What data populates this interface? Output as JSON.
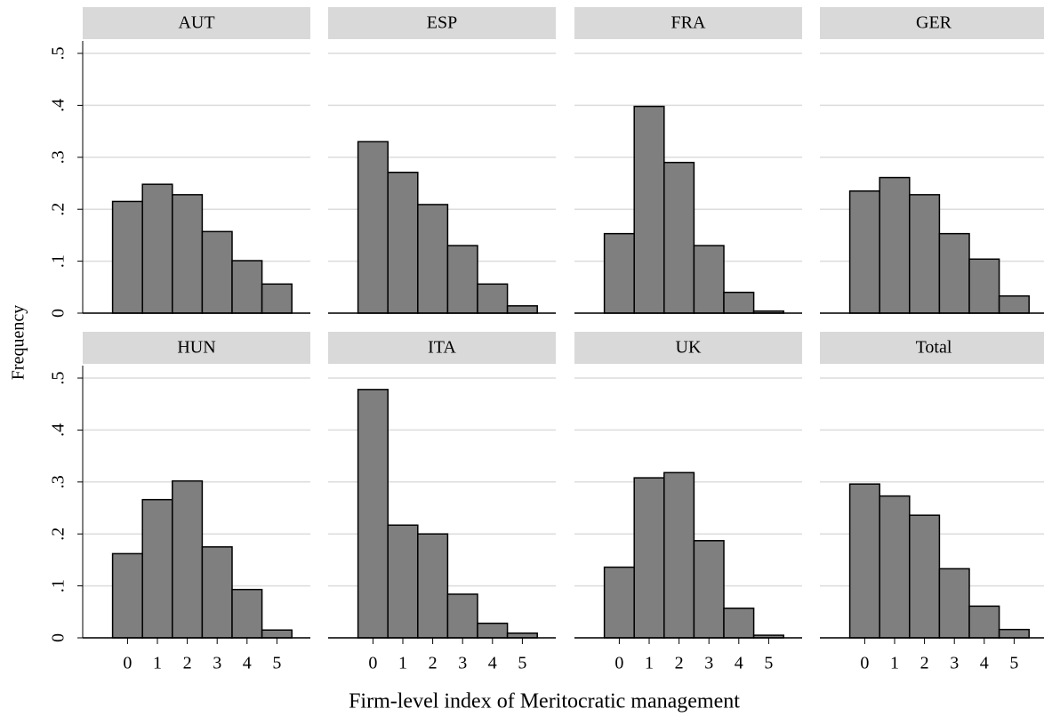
{
  "axis_labels": {
    "y": "Frequency",
    "x": "Firm-level index of Meritocratic management"
  },
  "chart_data": [
    {
      "type": "histogram",
      "title": "AUT",
      "bins": [
        -0.5,
        0.5,
        1.5,
        2.5,
        3.5,
        4.5,
        5.5
      ],
      "values": [
        0.215,
        0.248,
        0.228,
        0.157,
        0.101,
        0.056
      ],
      "color": "#7f7f7f",
      "xlim": [
        -1.5,
        6
      ],
      "ylim": [
        0,
        0.524
      ],
      "yticks": [
        0,
        {
          "value": 0.1,
          "label": ".1"
        },
        {
          "value": 0.2,
          "label": ".2"
        },
        {
          "value": 0.3,
          "label": ".3"
        },
        {
          "value": 0.4,
          "label": ".4"
        },
        {
          "value": 0.5,
          "label": ".5"
        }
      ],
      "grid": true
    },
    {
      "type": "histogram",
      "title": "ESP",
      "bins": [
        -0.5,
        0.5,
        1.5,
        2.5,
        3.5,
        4.5,
        5.5
      ],
      "values": [
        0.33,
        0.271,
        0.209,
        0.13,
        0.056,
        0.014
      ],
      "color": "#7f7f7f",
      "xlim": [
        -1.5,
        6
      ],
      "ylim": [
        0,
        0.524
      ],
      "yticks": [
        0,
        0.1,
        0.2,
        0.3,
        0.4,
        0.5
      ],
      "grid": true
    },
    {
      "type": "histogram",
      "title": "FRA",
      "bins": [
        -0.5,
        0.5,
        1.5,
        2.5,
        3.5,
        4.5,
        5.5
      ],
      "values": [
        0.153,
        0.398,
        0.29,
        0.13,
        0.04,
        0.004
      ],
      "color": "#7f7f7f",
      "xlim": [
        -1.5,
        6
      ],
      "ylim": [
        0,
        0.524
      ],
      "yticks": [
        0,
        0.1,
        0.2,
        0.3,
        0.4,
        0.5
      ],
      "grid": true
    },
    {
      "type": "histogram",
      "title": "GER",
      "bins": [
        -0.5,
        0.5,
        1.5,
        2.5,
        3.5,
        4.5,
        5.5
      ],
      "values": [
        0.235,
        0.261,
        0.228,
        0.153,
        0.104,
        0.033
      ],
      "color": "#7f7f7f",
      "xlim": [
        -1.5,
        6
      ],
      "ylim": [
        0,
        0.524
      ],
      "yticks": [
        0,
        0.1,
        0.2,
        0.3,
        0.4,
        0.5
      ],
      "grid": true
    },
    {
      "type": "histogram",
      "title": "HUN",
      "bins": [
        -0.5,
        0.5,
        1.5,
        2.5,
        3.5,
        4.5,
        5.5
      ],
      "values": [
        0.162,
        0.266,
        0.302,
        0.175,
        0.093,
        0.015
      ],
      "color": "#7f7f7f",
      "xlim": [
        -1.5,
        6
      ],
      "ylim": [
        0,
        0.524
      ],
      "xticks": [
        0,
        1,
        2,
        3,
        4,
        5
      ],
      "yticks": [
        0,
        {
          "value": 0.1,
          "label": ".1"
        },
        {
          "value": 0.2,
          "label": ".2"
        },
        {
          "value": 0.3,
          "label": ".3"
        },
        {
          "value": 0.4,
          "label": ".4"
        },
        {
          "value": 0.5,
          "label": ".5"
        }
      ],
      "grid": true
    },
    {
      "type": "histogram",
      "title": "ITA",
      "bins": [
        -0.5,
        0.5,
        1.5,
        2.5,
        3.5,
        4.5,
        5.5
      ],
      "values": [
        0.478,
        0.217,
        0.2,
        0.084,
        0.028,
        0.009
      ],
      "color": "#7f7f7f",
      "xlim": [
        -1.5,
        6
      ],
      "ylim": [
        0,
        0.524
      ],
      "xticks": [
        0,
        1,
        2,
        3,
        4,
        5
      ],
      "yticks": [
        0,
        0.1,
        0.2,
        0.3,
        0.4,
        0.5
      ],
      "grid": true
    },
    {
      "type": "histogram",
      "title": "UK",
      "bins": [
        -0.5,
        0.5,
        1.5,
        2.5,
        3.5,
        4.5,
        5.5
      ],
      "values": [
        0.136,
        0.308,
        0.318,
        0.187,
        0.057,
        0.005
      ],
      "color": "#7f7f7f",
      "xlim": [
        -1.5,
        6
      ],
      "ylim": [
        0,
        0.524
      ],
      "xticks": [
        0,
        1,
        2,
        3,
        4,
        5
      ],
      "yticks": [
        0,
        0.1,
        0.2,
        0.3,
        0.4,
        0.5
      ],
      "grid": true
    },
    {
      "type": "histogram",
      "title": "Total",
      "bins": [
        -0.5,
        0.5,
        1.5,
        2.5,
        3.5,
        4.5,
        5.5
      ],
      "values": [
        0.296,
        0.273,
        0.236,
        0.133,
        0.061,
        0.016
      ],
      "color": "#7f7f7f",
      "xlim": [
        -1.5,
        6
      ],
      "ylim": [
        0,
        0.524
      ],
      "xticks": [
        0,
        1,
        2,
        3,
        4,
        5
      ],
      "yticks": [
        0,
        0.1,
        0.2,
        0.3,
        0.4,
        0.5
      ],
      "grid": true
    }
  ]
}
